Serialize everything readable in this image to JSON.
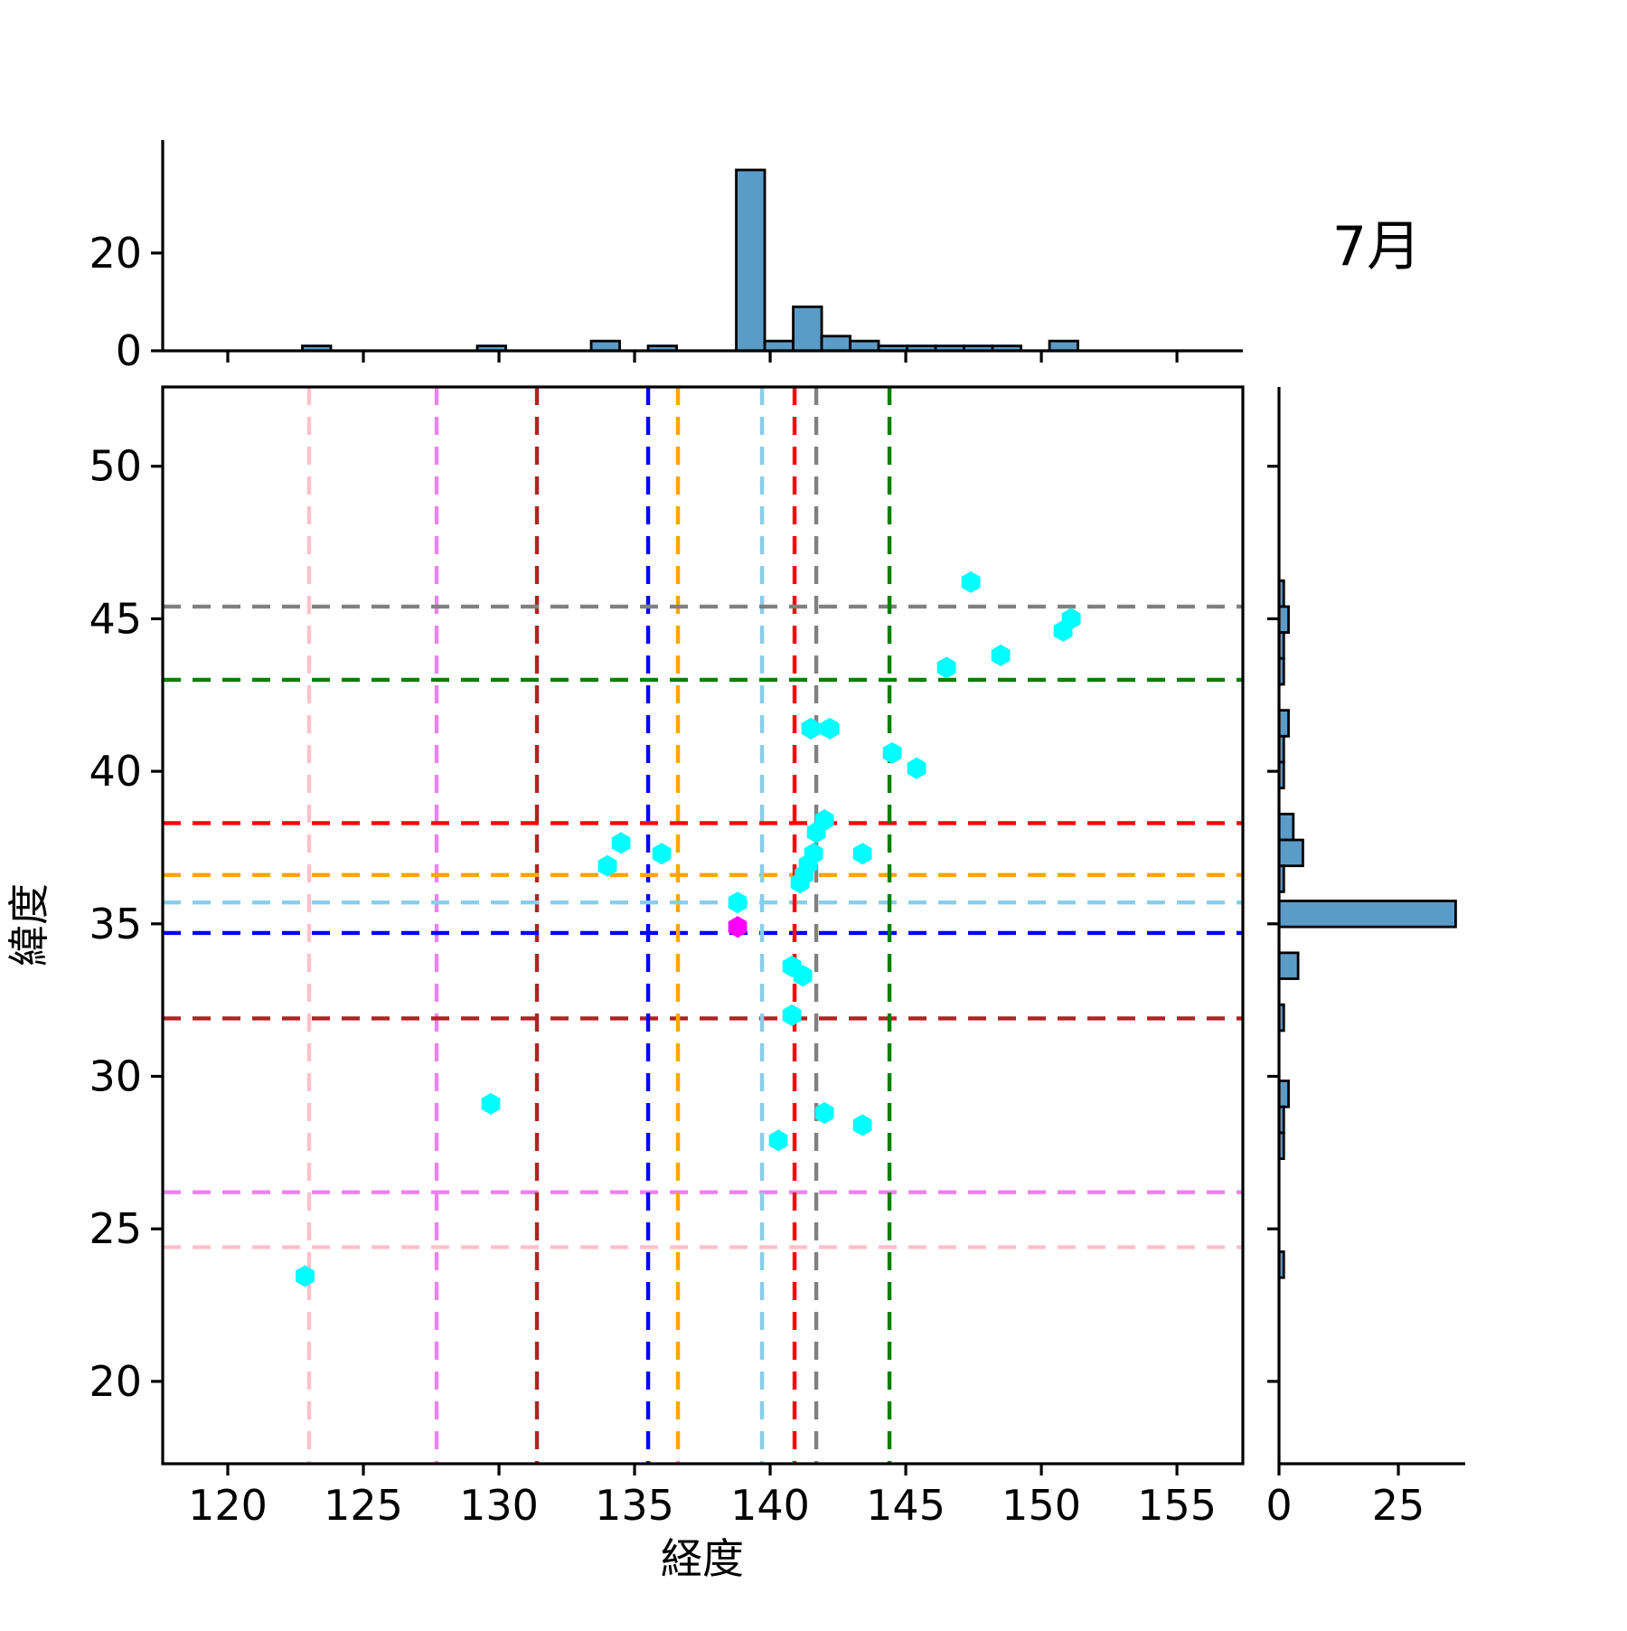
{
  "chart_data": {
    "type": "scatter",
    "title": "7月",
    "xlabel": "経度",
    "ylabel": "緯度",
    "xlim": [
      117.6,
      157.43
    ],
    "ylim": [
      17.3,
      52.6
    ],
    "xticks": [
      120,
      125,
      130,
      135,
      140,
      145,
      150,
      155
    ],
    "yticks": [
      20,
      25,
      30,
      35,
      40,
      45,
      50
    ],
    "grid": false,
    "legend": "none",
    "series": [
      {
        "name": "track-points",
        "marker": "hexagon",
        "color": "#00FFFF",
        "points": [
          [
            122.85,
            23.45
          ],
          [
            129.7,
            29.1
          ],
          [
            134.0,
            36.9
          ],
          [
            134.5,
            37.65
          ],
          [
            136.0,
            37.3
          ],
          [
            138.8,
            35.7
          ],
          [
            140.3,
            27.9
          ],
          [
            142.0,
            28.8
          ],
          [
            143.4,
            28.4
          ],
          [
            140.8,
            32.0
          ],
          [
            140.8,
            33.6
          ],
          [
            141.2,
            33.3
          ],
          [
            141.1,
            36.35
          ],
          [
            141.25,
            36.6
          ],
          [
            141.4,
            36.95
          ],
          [
            141.6,
            37.3
          ],
          [
            141.7,
            38.0
          ],
          [
            142.0,
            38.4
          ],
          [
            143.4,
            37.3
          ],
          [
            141.5,
            41.4
          ],
          [
            142.2,
            41.4
          ],
          [
            144.5,
            40.6
          ],
          [
            145.4,
            40.1
          ],
          [
            146.5,
            43.4
          ],
          [
            147.4,
            46.2
          ],
          [
            148.5,
            43.8
          ],
          [
            150.8,
            44.6
          ],
          [
            151.1,
            45.0
          ]
        ]
      },
      {
        "name": "highlight-point",
        "marker": "hexagon",
        "color": "#FF00FF",
        "points": [
          [
            138.8,
            34.9
          ]
        ]
      }
    ],
    "reference_lines": [
      {
        "name": "pink",
        "color": "#FFC0CB",
        "x": 123.0,
        "y": 24.4
      },
      {
        "name": "violet",
        "color": "#EE82EE",
        "x": 127.7,
        "y": 26.2
      },
      {
        "name": "firebrick",
        "color": "#B22222",
        "x": 131.4,
        "y": 31.9
      },
      {
        "name": "blue",
        "color": "#0000FF",
        "x": 135.5,
        "y": 34.7
      },
      {
        "name": "orange",
        "color": "#FFA500",
        "x": 136.6,
        "y": 36.6
      },
      {
        "name": "skyblue",
        "color": "#87CEEB",
        "x": 139.7,
        "y": 35.7
      },
      {
        "name": "red",
        "color": "#FF0000",
        "x": 140.9,
        "y": 38.3
      },
      {
        "name": "gray",
        "color": "#808080",
        "x": 141.7,
        "y": 45.4
      },
      {
        "name": "green",
        "color": "#008000",
        "x": 144.4,
        "y": 43.0
      }
    ],
    "marginal_top": {
      "type": "bar",
      "axis": "longitude-counts",
      "ylim": [
        0,
        43.1
      ],
      "yticks": [
        0,
        20
      ],
      "bar_color": "#5B9BC8",
      "bar_edge_color": "#000000",
      "bars": [
        {
          "x0": 122.75,
          "x1": 123.8,
          "count": 1
        },
        {
          "x0": 129.2,
          "x1": 130.25,
          "count": 1
        },
        {
          "x0": 133.4,
          "x1": 134.45,
          "count": 2
        },
        {
          "x0": 135.5,
          "x1": 136.55,
          "count": 1
        },
        {
          "x0": 138.75,
          "x1": 139.8,
          "count": 37
        },
        {
          "x0": 139.8,
          "x1": 140.85,
          "count": 2
        },
        {
          "x0": 140.85,
          "x1": 141.9,
          "count": 9
        },
        {
          "x0": 141.9,
          "x1": 142.95,
          "count": 3
        },
        {
          "x0": 142.95,
          "x1": 144.0,
          "count": 2
        },
        {
          "x0": 144.0,
          "x1": 145.05,
          "count": 1
        },
        {
          "x0": 145.05,
          "x1": 146.1,
          "count": 1
        },
        {
          "x0": 146.1,
          "x1": 147.15,
          "count": 1
        },
        {
          "x0": 147.15,
          "x1": 148.2,
          "count": 1
        },
        {
          "x0": 148.2,
          "x1": 149.25,
          "count": 1
        },
        {
          "x0": 150.3,
          "x1": 151.35,
          "count": 2
        }
      ]
    },
    "marginal_right": {
      "type": "bar",
      "axis": "latitude-counts",
      "xlim": [
        0,
        39
      ],
      "xticks": [
        0,
        25
      ],
      "bar_color": "#5B9BC8",
      "bar_edge_color": "#000000",
      "bars": [
        {
          "y0": 45.4,
          "y1": 46.25,
          "count": 1
        },
        {
          "y0": 44.55,
          "y1": 45.4,
          "count": 2
        },
        {
          "y0": 43.7,
          "y1": 44.55,
          "count": 1
        },
        {
          "y0": 42.85,
          "y1": 43.7,
          "count": 1
        },
        {
          "y0": 41.15,
          "y1": 42.0,
          "count": 2
        },
        {
          "y0": 40.3,
          "y1": 41.15,
          "count": 1
        },
        {
          "y0": 39.45,
          "y1": 40.3,
          "count": 1
        },
        {
          "y0": 37.75,
          "y1": 38.6,
          "count": 3
        },
        {
          "y0": 36.9,
          "y1": 37.75,
          "count": 5
        },
        {
          "y0": 36.05,
          "y1": 36.9,
          "count": 1
        },
        {
          "y0": 34.9,
          "y1": 35.75,
          "count": 37
        },
        {
          "y0": 33.2,
          "y1": 34.05,
          "count": 4
        },
        {
          "y0": 31.5,
          "y1": 32.35,
          "count": 1
        },
        {
          "y0": 29.0,
          "y1": 29.85,
          "count": 2
        },
        {
          "y0": 28.15,
          "y1": 29.0,
          "count": 1
        },
        {
          "y0": 27.3,
          "y1": 28.15,
          "count": 1
        },
        {
          "y0": 23.4,
          "y1": 24.25,
          "count": 1
        }
      ]
    }
  }
}
